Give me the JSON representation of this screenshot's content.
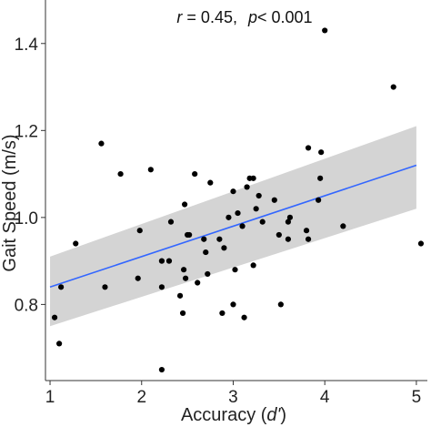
{
  "chart_data": {
    "type": "scatter",
    "title": "",
    "annotation": {
      "r_label": "r",
      "r_eq": " = 0.45,",
      "p_label": "p",
      "p_eq": "< 0.001"
    },
    "xlabel": {
      "prefix": "Accuracy (",
      "italic": "d'",
      "suffix": ")"
    },
    "ylabel": "Gait Speed (m/s)",
    "xlim": [
      0.95,
      5.12
    ],
    "ylim": [
      0.625,
      1.5
    ],
    "x_ticks": [
      1,
      2,
      3,
      4,
      5
    ],
    "y_ticks": [
      0.8,
      1.0,
      1.2,
      1.4
    ],
    "y_tick_labels": [
      "0.8",
      "1.0",
      "1.2",
      "1.4"
    ],
    "grid": false,
    "fit": {
      "type": "linear",
      "x": [
        1.0,
        5.0
      ],
      "y": [
        0.84,
        1.12
      ],
      "ci_lower": [
        0.75,
        1.02
      ],
      "ci_upper": [
        0.91,
        1.21
      ],
      "line_color": "#3366ff",
      "band_color": "#d4d4d4"
    },
    "point_color": "#000000",
    "points": [
      [
        1.05,
        0.77
      ],
      [
        1.1,
        0.71
      ],
      [
        1.12,
        0.84
      ],
      [
        1.28,
        0.94
      ],
      [
        1.56,
        1.17
      ],
      [
        1.6,
        0.84
      ],
      [
        1.77,
        1.1
      ],
      [
        1.96,
        0.86
      ],
      [
        1.98,
        0.97
      ],
      [
        2.1,
        1.11
      ],
      [
        2.22,
        0.65
      ],
      [
        2.22,
        0.9
      ],
      [
        2.22,
        0.84
      ],
      [
        2.3,
        0.9
      ],
      [
        2.32,
        0.99
      ],
      [
        2.42,
        0.82
      ],
      [
        2.45,
        0.78
      ],
      [
        2.46,
        0.88
      ],
      [
        2.47,
        1.03
      ],
      [
        2.48,
        0.86
      ],
      [
        2.5,
        0.96
      ],
      [
        2.52,
        0.96
      ],
      [
        2.58,
        1.1
      ],
      [
        2.61,
        0.85
      ],
      [
        2.68,
        0.95
      ],
      [
        2.7,
        0.92
      ],
      [
        2.72,
        0.87
      ],
      [
        2.75,
        1.08
      ],
      [
        2.85,
        0.95
      ],
      [
        2.88,
        0.78
      ],
      [
        2.9,
        0.93
      ],
      [
        2.95,
        1.0
      ],
      [
        3.0,
        1.06
      ],
      [
        3.0,
        0.8
      ],
      [
        3.02,
        0.88
      ],
      [
        3.05,
        1.01
      ],
      [
        3.1,
        0.98
      ],
      [
        3.12,
        0.77
      ],
      [
        3.15,
        1.07
      ],
      [
        3.18,
        1.09
      ],
      [
        3.22,
        1.09
      ],
      [
        3.22,
        0.89
      ],
      [
        3.25,
        1.02
      ],
      [
        3.28,
        1.05
      ],
      [
        3.32,
        0.99
      ],
      [
        3.45,
        1.04
      ],
      [
        3.5,
        0.96
      ],
      [
        3.52,
        0.8
      ],
      [
        3.6,
        0.95
      ],
      [
        3.6,
        0.99
      ],
      [
        3.62,
        1.0
      ],
      [
        3.8,
        0.97
      ],
      [
        3.82,
        0.95
      ],
      [
        3.82,
        1.16
      ],
      [
        3.93,
        1.04
      ],
      [
        3.95,
        1.09
      ],
      [
        3.96,
        1.15
      ],
      [
        4.0,
        1.43
      ],
      [
        4.2,
        0.98
      ],
      [
        4.75,
        1.3
      ],
      [
        5.05,
        0.94
      ]
    ]
  }
}
